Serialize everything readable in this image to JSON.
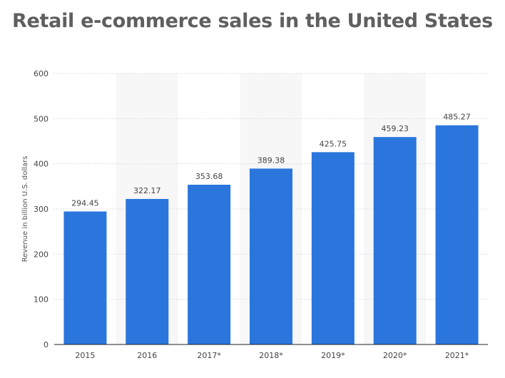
{
  "chart_data": {
    "type": "bar",
    "title": "Retail e-commerce sales in the United States",
    "xlabel": "",
    "ylabel": "Revenue in billion U.S. dollars",
    "categories": [
      "2015",
      "2016",
      "2017*",
      "2018*",
      "2019*",
      "2020*",
      "2021*"
    ],
    "values": [
      294.45,
      322.17,
      353.68,
      389.38,
      425.75,
      459.23,
      485.27
    ],
    "value_labels": [
      "294.45",
      "322.17",
      "353.68",
      "389.38",
      "425.75",
      "459.23",
      "485.27"
    ],
    "ylim": [
      0,
      600
    ],
    "yticks": [
      "0",
      "100",
      "200",
      "300",
      "400",
      "500",
      "600"
    ],
    "grid": true,
    "bar_color": "#2a76dd",
    "band_color": "#f7f7f7"
  }
}
